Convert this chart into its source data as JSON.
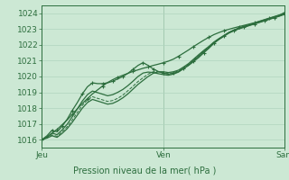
{
  "bg_color": "#cce8d4",
  "plot_bg": "#d6eee0",
  "grid_color": "#b0d4be",
  "line_color": "#2d6e3e",
  "xlabel_text": "Pression niveau de la mer( hPa )",
  "ylim": [
    1015.5,
    1024.5
  ],
  "yticks": [
    1016,
    1017,
    1018,
    1019,
    1020,
    1021,
    1022,
    1023,
    1024
  ],
  "xlim": [
    0,
    48
  ],
  "xticks": [
    0,
    24,
    48
  ],
  "xticklabels": [
    "Jeu",
    "Ven",
    "Sam"
  ],
  "series": [
    [
      1016.0,
      1016.15,
      1016.4,
      1016.65,
      1016.95,
      1017.25,
      1017.6,
      1017.95,
      1018.3,
      1018.6,
      1018.9,
      1019.15,
      1019.4,
      1019.62,
      1019.8,
      1019.95,
      1020.08,
      1020.2,
      1020.32,
      1020.42,
      1020.52,
      1020.6,
      1020.7,
      1020.78,
      1020.87,
      1020.97,
      1021.1,
      1021.28,
      1021.48,
      1021.68,
      1021.9,
      1022.1,
      1022.3,
      1022.48,
      1022.65,
      1022.78,
      1022.9,
      1022.99,
      1023.08,
      1023.16,
      1023.24,
      1023.32,
      1023.4,
      1023.5,
      1023.6,
      1023.7,
      1023.8,
      1023.9,
      1024.05
    ],
    [
      1016.0,
      1016.25,
      1016.6,
      1016.5,
      1016.85,
      1017.3,
      1017.85,
      1018.35,
      1018.9,
      1019.35,
      1019.6,
      1019.55,
      1019.55,
      1019.6,
      1019.7,
      1019.85,
      1020.0,
      1020.2,
      1020.45,
      1020.7,
      1020.88,
      1020.7,
      1020.48,
      1020.32,
      1020.2,
      1020.15,
      1020.2,
      1020.3,
      1020.5,
      1020.7,
      1020.95,
      1021.2,
      1021.5,
      1021.78,
      1022.1,
      1022.35,
      1022.55,
      1022.75,
      1022.9,
      1023.02,
      1023.12,
      1023.22,
      1023.32,
      1023.42,
      1023.52,
      1023.62,
      1023.72,
      1023.82,
      1023.95
    ],
    [
      1016.0,
      1016.1,
      1016.25,
      1016.15,
      1016.4,
      1016.7,
      1017.1,
      1017.55,
      1018.0,
      1018.35,
      1018.55,
      1018.45,
      1018.35,
      1018.25,
      1018.3,
      1018.45,
      1018.65,
      1018.9,
      1019.2,
      1019.5,
      1019.75,
      1020.0,
      1020.2,
      1020.3,
      1020.3,
      1020.25,
      1020.3,
      1020.4,
      1020.6,
      1020.82,
      1021.1,
      1021.38,
      1021.65,
      1021.9,
      1022.18,
      1022.4,
      1022.6,
      1022.8,
      1022.95,
      1023.08,
      1023.18,
      1023.28,
      1023.38,
      1023.48,
      1023.58,
      1023.68,
      1023.78,
      1023.88,
      1023.98
    ],
    [
      1016.0,
      1016.18,
      1016.42,
      1016.32,
      1016.62,
      1016.98,
      1017.45,
      1017.95,
      1018.45,
      1018.85,
      1019.08,
      1018.98,
      1018.88,
      1018.78,
      1018.85,
      1019.0,
      1019.18,
      1019.42,
      1019.7,
      1020.0,
      1020.22,
      1020.28,
      1020.25,
      1020.18,
      1020.12,
      1020.08,
      1020.15,
      1020.28,
      1020.5,
      1020.72,
      1021.0,
      1021.28,
      1021.57,
      1021.82,
      1022.12,
      1022.35,
      1022.57,
      1022.78,
      1022.92,
      1023.04,
      1023.14,
      1023.24,
      1023.34,
      1023.44,
      1023.54,
      1023.64,
      1023.74,
      1023.84,
      1023.94
    ],
    [
      1016.0,
      1016.12,
      1016.3,
      1016.22,
      1016.5,
      1016.82,
      1017.25,
      1017.72,
      1018.18,
      1018.52,
      1018.72,
      1018.62,
      1018.52,
      1018.42,
      1018.48,
      1018.62,
      1018.82,
      1019.1,
      1019.38,
      1019.68,
      1019.92,
      1020.15,
      1020.3,
      1020.3,
      1020.25,
      1020.18,
      1020.25,
      1020.35,
      1020.55,
      1020.77,
      1021.05,
      1021.33,
      1021.62,
      1021.87,
      1022.15,
      1022.38,
      1022.58,
      1022.78,
      1022.93,
      1023.06,
      1023.16,
      1023.26,
      1023.36,
      1023.46,
      1023.56,
      1023.66,
      1023.76,
      1023.86,
      1023.96
    ]
  ],
  "marker_every": [
    3,
    2,
    0,
    0,
    0
  ],
  "with_marker": [
    true,
    true,
    false,
    false,
    false
  ],
  "linestyles": [
    "-",
    "-",
    "-",
    "-",
    "--"
  ],
  "linewidths": [
    0.9,
    0.9,
    0.9,
    0.9,
    0.7
  ]
}
